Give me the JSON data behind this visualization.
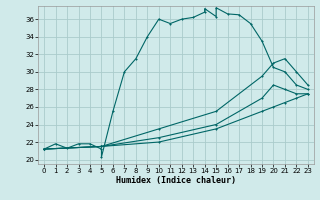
{
  "xlabel": "Humidex (Indice chaleur)",
  "bg_color": "#d0eaea",
  "grid_color": "#aacccc",
  "line_color": "#006666",
  "xlim": [
    -0.5,
    23.5
  ],
  "ylim": [
    19.5,
    37.5
  ],
  "xticks": [
    0,
    1,
    2,
    3,
    4,
    5,
    6,
    7,
    8,
    9,
    10,
    11,
    12,
    13,
    14,
    15,
    16,
    17,
    18,
    19,
    20,
    21,
    22,
    23
  ],
  "yticks": [
    20,
    22,
    24,
    26,
    28,
    30,
    32,
    34,
    36
  ],
  "line1_x": [
    0,
    1,
    2,
    3,
    4,
    5,
    5,
    6,
    7,
    8,
    9,
    10,
    11,
    12,
    13,
    14,
    14,
    15,
    15,
    16,
    17,
    18,
    19,
    20,
    21,
    22,
    23
  ],
  "line1_y": [
    21.2,
    21.8,
    21.3,
    21.8,
    21.8,
    21.2,
    20.3,
    25.5,
    30.0,
    31.5,
    34.0,
    36.0,
    35.5,
    36.0,
    36.2,
    36.8,
    37.2,
    36.3,
    37.3,
    36.6,
    36.5,
    35.5,
    33.5,
    30.5,
    30.0,
    28.5,
    28.0
  ],
  "line2_x": [
    0,
    5,
    10,
    15,
    19,
    20,
    21,
    22,
    23
  ],
  "line2_y": [
    21.2,
    21.5,
    23.5,
    25.5,
    29.5,
    31.0,
    31.5,
    30.0,
    28.5
  ],
  "line3_x": [
    0,
    5,
    10,
    15,
    19,
    20,
    21,
    22,
    23
  ],
  "line3_y": [
    21.2,
    21.5,
    22.5,
    24.0,
    27.0,
    28.5,
    28.0,
    27.5,
    27.5
  ],
  "line4_x": [
    0,
    5,
    10,
    15,
    19,
    20,
    21,
    22,
    23
  ],
  "line4_y": [
    21.2,
    21.5,
    22.0,
    23.5,
    25.5,
    26.0,
    26.5,
    27.0,
    27.5
  ]
}
